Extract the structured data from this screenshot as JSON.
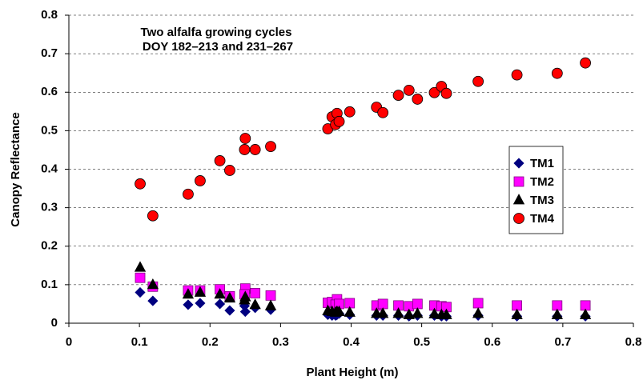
{
  "chart_data": {
    "type": "scatter",
    "annotation": [
      "Two alfalfa growing cycles",
      "DOY 182–213 and 231–267"
    ],
    "x_label": "Plant Height (m)",
    "y_label": "Canopy Reflectance",
    "x": [
      0.101,
      0.119,
      0.169,
      0.186,
      0.214,
      0.228,
      0.25,
      0.249,
      0.264,
      0.286,
      0.367,
      0.373,
      0.38,
      0.378,
      0.383,
      0.398,
      0.436,
      0.445,
      0.467,
      0.482,
      0.494,
      0.518,
      0.528,
      0.535,
      0.58,
      0.635,
      0.692,
      0.732
    ],
    "series": [
      {
        "name": "TM1",
        "color": "#000080",
        "marker": "diamond",
        "values": [
          0.08,
          0.058,
          0.048,
          0.052,
          0.05,
          0.033,
          0.03,
          0.045,
          0.04,
          0.035,
          0.022,
          0.02,
          0.022,
          0.02,
          0.025,
          0.022,
          0.02,
          0.02,
          0.02,
          0.018,
          0.02,
          0.02,
          0.018,
          0.018,
          0.02,
          0.018,
          0.018,
          0.018
        ]
      },
      {
        "name": "TM2",
        "color": "#ff00ff",
        "marker": "square",
        "values": [
          0.118,
          0.095,
          0.085,
          0.085,
          0.088,
          0.07,
          0.09,
          0.075,
          0.078,
          0.072,
          0.053,
          0.055,
          0.062,
          0.048,
          0.05,
          0.052,
          0.046,
          0.05,
          0.046,
          0.044,
          0.05,
          0.046,
          0.044,
          0.042,
          0.052,
          0.046,
          0.046,
          0.046
        ]
      },
      {
        "name": "TM3",
        "color": "#000000",
        "marker": "triangle",
        "values": [
          0.145,
          0.1,
          0.075,
          0.08,
          0.075,
          0.065,
          0.068,
          0.06,
          0.048,
          0.045,
          0.032,
          0.03,
          0.03,
          0.028,
          0.03,
          0.028,
          0.025,
          0.025,
          0.025,
          0.022,
          0.025,
          0.024,
          0.022,
          0.022,
          0.025,
          0.022,
          0.022,
          0.022
        ]
      },
      {
        "name": "TM4",
        "color": "#ff0000",
        "marker": "circle",
        "values": [
          0.362,
          0.279,
          0.335,
          0.37,
          0.422,
          0.397,
          0.48,
          0.451,
          0.451,
          0.459,
          0.505,
          0.536,
          0.545,
          0.516,
          0.524,
          0.549,
          0.561,
          0.547,
          0.592,
          0.605,
          0.582,
          0.599,
          0.615,
          0.597,
          0.628,
          0.645,
          0.649,
          0.676
        ]
      }
    ],
    "xlim": [
      0,
      0.8
    ],
    "ylim": [
      0,
      0.8
    ],
    "xticks": [
      0,
      0.1,
      0.2,
      0.3,
      0.4,
      0.5,
      0.6,
      0.7,
      0.8
    ],
    "yticks": [
      0,
      0.1,
      0.2,
      0.3,
      0.4,
      0.5,
      0.6,
      0.7,
      0.8
    ],
    "grid": true
  }
}
